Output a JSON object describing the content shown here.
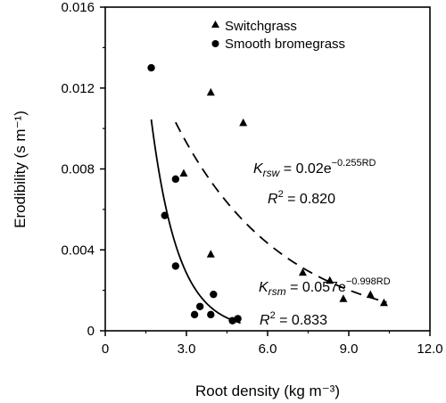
{
  "chart_data": {
    "type": "scatter",
    "xlabel": "Root density (kg m⁻³)",
    "ylabel": "Erodibility (s m⁻¹)",
    "xlim": [
      0,
      12
    ],
    "ylim": [
      0,
      0.016
    ],
    "x_ticks": [
      {
        "value": 0,
        "label": "0"
      },
      {
        "value": 3,
        "label": "3.0"
      },
      {
        "value": 6,
        "label": "6.0"
      },
      {
        "value": 9,
        "label": "9.0"
      },
      {
        "value": 12,
        "label": "12.0"
      }
    ],
    "y_ticks": [
      {
        "value": 0,
        "label": "0"
      },
      {
        "value": 0.004,
        "label": "0.004"
      },
      {
        "value": 0.008,
        "label": "0.008"
      },
      {
        "value": 0.012,
        "label": "0.012"
      },
      {
        "value": 0.016,
        "label": "0.016"
      }
    ],
    "grid": false,
    "legend_position": "top-right",
    "series": [
      {
        "name": "Switchgrass",
        "marker": "triangle",
        "points": [
          {
            "x": 2.9,
            "y": 0.0078
          },
          {
            "x": 3.9,
            "y": 0.0118
          },
          {
            "x": 5.1,
            "y": 0.0103
          },
          {
            "x": 3.9,
            "y": 0.0038
          },
          {
            "x": 7.3,
            "y": 0.0029
          },
          {
            "x": 8.3,
            "y": 0.0025
          },
          {
            "x": 8.8,
            "y": 0.0016
          },
          {
            "x": 9.8,
            "y": 0.0018
          },
          {
            "x": 10.3,
            "y": 0.0014
          }
        ],
        "fit": {
          "a": 0.02,
          "b": -0.255,
          "x_range": [
            2.6,
            10.4
          ],
          "style": "dashed"
        }
      },
      {
        "name": "Smooth bromegrass",
        "marker": "circle",
        "points": [
          {
            "x": 1.7,
            "y": 0.013
          },
          {
            "x": 2.6,
            "y": 0.0075
          },
          {
            "x": 2.2,
            "y": 0.0057
          },
          {
            "x": 2.6,
            "y": 0.0032
          },
          {
            "x": 3.3,
            "y": 0.0008
          },
          {
            "x": 3.5,
            "y": 0.0012
          },
          {
            "x": 3.9,
            "y": 0.0008
          },
          {
            "x": 4.0,
            "y": 0.0018
          },
          {
            "x": 4.7,
            "y": 0.0005
          },
          {
            "x": 4.9,
            "y": 0.0006
          }
        ],
        "fit": {
          "a": 0.057,
          "b": -0.998,
          "x_range": [
            1.7,
            5.0
          ],
          "style": "solid"
        }
      }
    ],
    "annotations": {
      "switch_eq": {
        "k": "K",
        "sub": "rsw",
        "eq": " = 0.02e",
        "exp": "−0.255RD"
      },
      "switch_r2": {
        "r": "R",
        "sup": "2",
        "val": " = 0.820"
      },
      "brome_eq": {
        "k": "K",
        "sub": "rsm",
        "eq": " = 0.057e",
        "exp": "−0.998RD"
      },
      "brome_r2": {
        "r": "R",
        "sup": "2",
        "val": " = 0.833"
      }
    }
  }
}
